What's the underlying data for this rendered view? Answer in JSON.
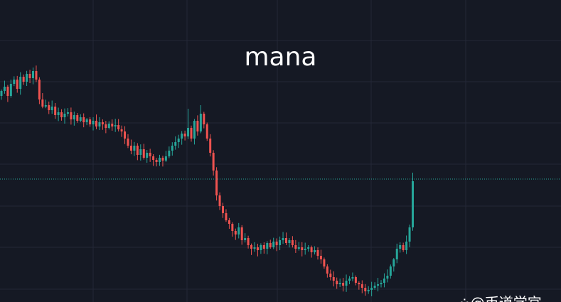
{
  "chart_data": {
    "type": "candlestick",
    "title": "mana",
    "xlabel": "",
    "ylabel": "",
    "grid": true,
    "colors": {
      "up": "#26a69a",
      "down": "#ef5350",
      "background": "#151924",
      "grid": "#232836",
      "last_price_line": "#26a69a"
    },
    "first_open": 290,
    "closes": [
      297,
      303,
      290,
      307,
      313,
      300,
      317,
      310,
      321,
      315,
      325,
      313,
      285,
      275,
      277,
      270,
      275,
      263,
      267,
      260,
      265,
      267,
      257,
      263,
      255,
      260,
      253,
      257,
      250,
      255,
      247,
      253,
      250,
      245,
      251,
      247,
      249,
      243,
      240,
      230,
      220,
      213,
      220,
      207,
      215,
      203,
      210,
      205,
      200,
      197,
      203,
      199,
      205,
      213,
      220,
      225,
      230,
      237,
      233,
      245,
      230,
      255,
      240,
      265,
      250,
      230,
      210,
      185,
      150,
      135,
      125,
      115,
      110,
      100,
      95,
      105,
      87,
      90,
      80,
      75,
      77,
      73,
      80,
      75,
      83,
      77,
      85,
      80,
      87,
      90,
      83,
      87,
      80,
      75,
      77,
      73,
      75,
      77,
      70,
      73,
      65,
      60,
      50,
      40,
      35,
      30,
      25,
      27,
      23,
      30,
      33,
      35,
      27,
      25,
      20,
      15,
      17,
      20,
      23,
      25,
      27,
      33,
      37,
      50,
      60,
      75,
      80,
      73,
      85,
      105,
      170
    ],
    "notable_highs": {
      "10": 330,
      "59": 272,
      "63": 277,
      "130": 182
    },
    "last_price_line": true
  },
  "watermark": {
    "text": "@币道学宫",
    "icon": "paw-icon"
  }
}
